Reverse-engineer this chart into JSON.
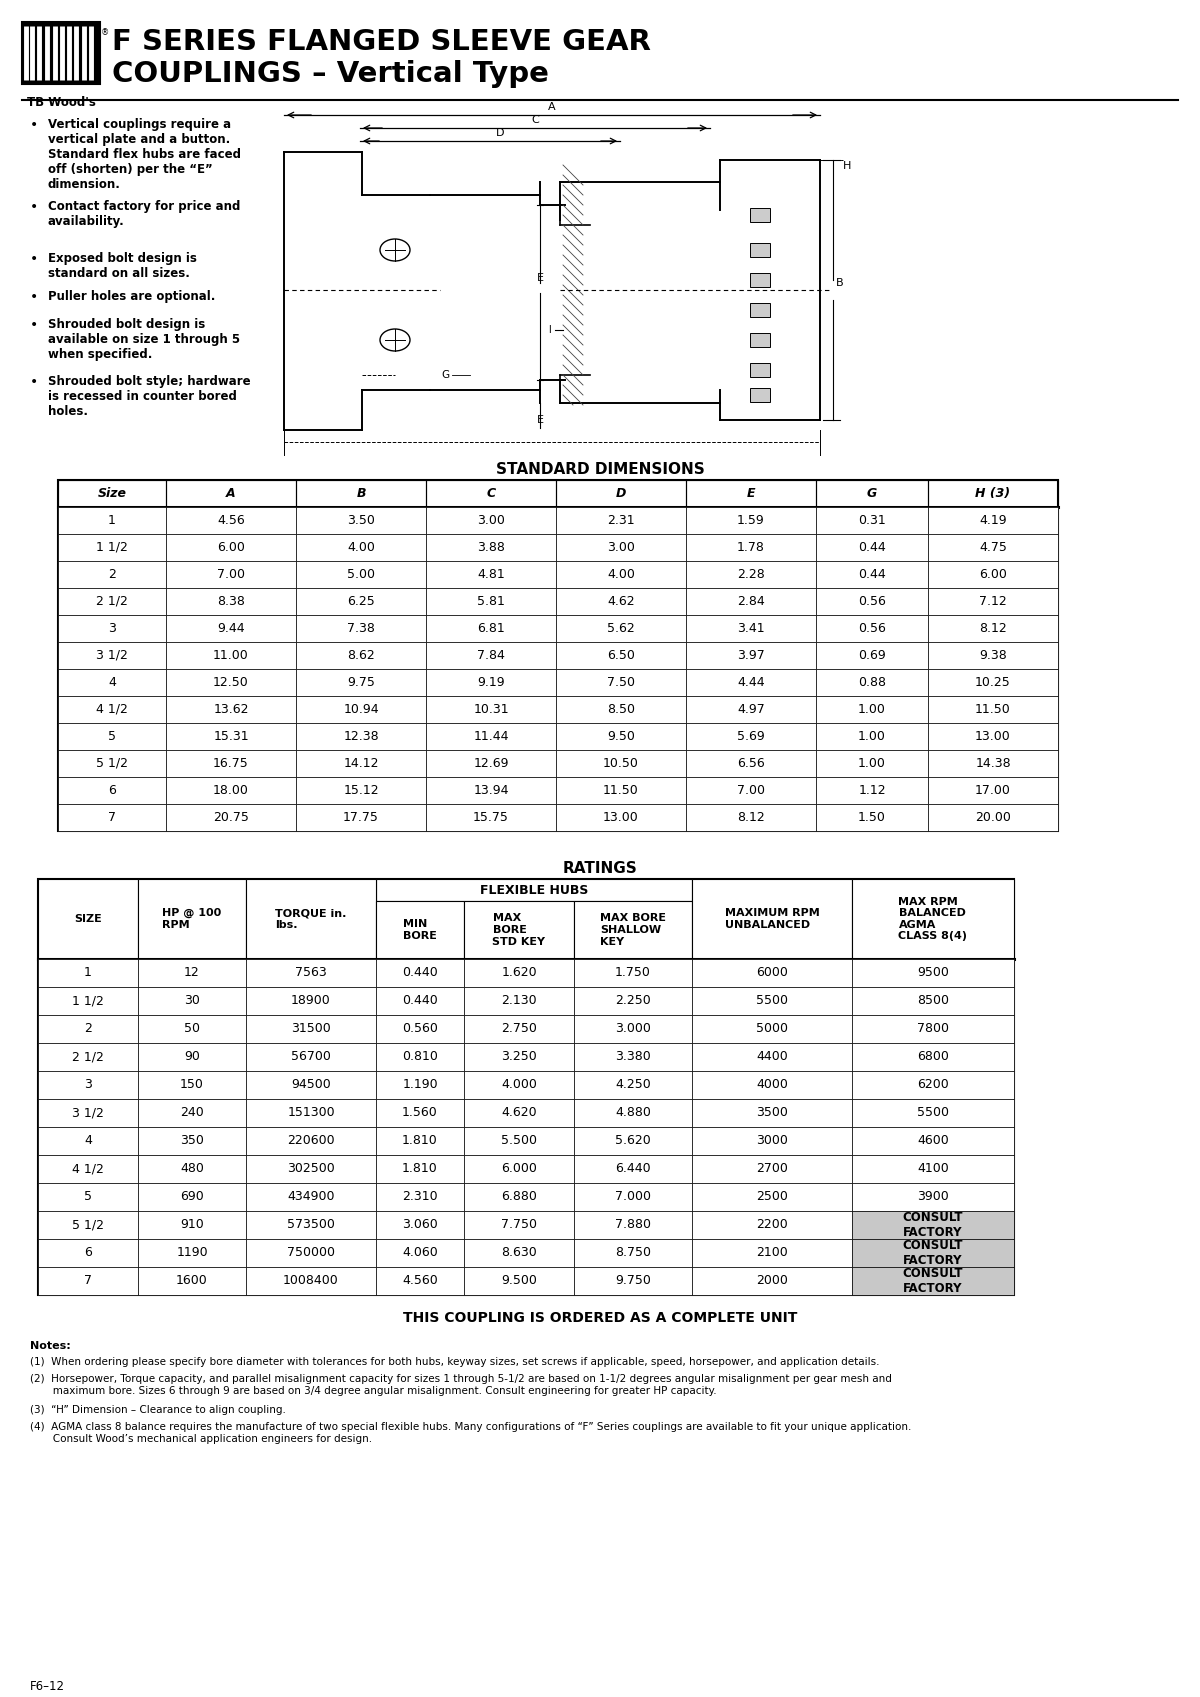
{
  "title_line1": "F SERIES FLANGED SLEEVE GEAR",
  "title_line2": "COUPLINGS – Vertical Type",
  "bullet_points": [
    "Vertical couplings require a\nvertical plate and a button.\nStandard flex hubs are faced\noff (shorten) per the “E”\ndimension.",
    "Contact factory for price and\navailability.",
    "Exposed bolt design is\nstandard on all sizes.",
    "Puller holes are optional.",
    "Shrouded bolt design is\navailable on size 1 through 5\nwhen specified.",
    "Shrouded bolt style; hardware\nis recessed in counter bored\nholes."
  ],
  "std_dim_title": "STANDARD DIMENSIONS",
  "std_dim_headers": [
    "Size",
    "A",
    "B",
    "C",
    "D",
    "E",
    "G",
    "H (3)"
  ],
  "std_dim_rows": [
    [
      "1",
      "4.56",
      "3.50",
      "3.00",
      "2.31",
      "1.59",
      "0.31",
      "4.19"
    ],
    [
      "1 1/2",
      "6.00",
      "4.00",
      "3.88",
      "3.00",
      "1.78",
      "0.44",
      "4.75"
    ],
    [
      "2",
      "7.00",
      "5.00",
      "4.81",
      "4.00",
      "2.28",
      "0.44",
      "6.00"
    ],
    [
      "2 1/2",
      "8.38",
      "6.25",
      "5.81",
      "4.62",
      "2.84",
      "0.56",
      "7.12"
    ],
    [
      "3",
      "9.44",
      "7.38",
      "6.81",
      "5.62",
      "3.41",
      "0.56",
      "8.12"
    ],
    [
      "3 1/2",
      "11.00",
      "8.62",
      "7.84",
      "6.50",
      "3.97",
      "0.69",
      "9.38"
    ],
    [
      "4",
      "12.50",
      "9.75",
      "9.19",
      "7.50",
      "4.44",
      "0.88",
      "10.25"
    ],
    [
      "4 1/2",
      "13.62",
      "10.94",
      "10.31",
      "8.50",
      "4.97",
      "1.00",
      "11.50"
    ],
    [
      "5",
      "15.31",
      "12.38",
      "11.44",
      "9.50",
      "5.69",
      "1.00",
      "13.00"
    ],
    [
      "5 1/2",
      "16.75",
      "14.12",
      "12.69",
      "10.50",
      "6.56",
      "1.00",
      "14.38"
    ],
    [
      "6",
      "18.00",
      "15.12",
      "13.94",
      "11.50",
      "7.00",
      "1.12",
      "17.00"
    ],
    [
      "7",
      "20.75",
      "17.75",
      "15.75",
      "13.00",
      "8.12",
      "1.50",
      "20.00"
    ]
  ],
  "ratings_title": "RATINGS",
  "ratings_headers": [
    "SIZE",
    "HP @ 100\nRPM",
    "TORQUE in.\nlbs.",
    "MIN\nBORE",
    "MAX\nBORE\nSTD KEY",
    "MAX BORE\nSHALLOW\nKEY",
    "MAXIMUM RPM\nUNBALANCED",
    "MAX RPM\nBALANCED\nAGMA\nCLASS 8(4)"
  ],
  "ratings_rows": [
    [
      "1",
      "12",
      "7563",
      "0.440",
      "1.620",
      "1.750",
      "6000",
      "9500"
    ],
    [
      "1 1/2",
      "30",
      "18900",
      "0.440",
      "2.130",
      "2.250",
      "5500",
      "8500"
    ],
    [
      "2",
      "50",
      "31500",
      "0.560",
      "2.750",
      "3.000",
      "5000",
      "7800"
    ],
    [
      "2 1/2",
      "90",
      "56700",
      "0.810",
      "3.250",
      "3.380",
      "4400",
      "6800"
    ],
    [
      "3",
      "150",
      "94500",
      "1.190",
      "4.000",
      "4.250",
      "4000",
      "6200"
    ],
    [
      "3 1/2",
      "240",
      "151300",
      "1.560",
      "4.620",
      "4.880",
      "3500",
      "5500"
    ],
    [
      "4",
      "350",
      "220600",
      "1.810",
      "5.500",
      "5.620",
      "3000",
      "4600"
    ],
    [
      "4 1/2",
      "480",
      "302500",
      "1.810",
      "6.000",
      "6.440",
      "2700",
      "4100"
    ],
    [
      "5",
      "690",
      "434900",
      "2.310",
      "6.880",
      "7.000",
      "2500",
      "3900"
    ],
    [
      "5 1/2",
      "910",
      "573500",
      "3.060",
      "7.750",
      "7.880",
      "2200",
      "CONSULT\nFACTORY"
    ],
    [
      "6",
      "1190",
      "750000",
      "4.060",
      "8.630",
      "8.750",
      "2100",
      "CONSULT\nFACTORY"
    ],
    [
      "7",
      "1600",
      "1008400",
      "4.560",
      "9.500",
      "9.750",
      "2000",
      "CONSULT\nFACTORY"
    ]
  ],
  "consult_rows": [
    9,
    10,
    11
  ],
  "order_note": "THIS COUPLING IS ORDERED AS A COMPLETE UNIT",
  "notes_title": "Notes:",
  "notes": [
    "(1)  When ordering please specify bore diameter with tolerances for both hubs, keyway sizes, set screws if applicable, speed, horsepower, and application details.",
    "(2)  Horsepower, Torque capacity, and parallel misalignment capacity for sizes 1 through 5-1/2 are based on 1-1/2 degrees angular misalignment per gear mesh and\n       maximum bore. Sizes 6 through 9 are based on 3/4 degree angular misalignment. Consult engineering for greater HP capacity.",
    "(3)  “H” Dimension – Clearance to align coupling.",
    "(4)  AGMA class 8 balance requires the manufacture of two special flexible hubs. Many configurations of “F” Series couplings are available to fit your unique application.\n       Consult Wood’s mechanical application engineers for design."
  ],
  "footer": "F6–12",
  "bg_color": "#ffffff"
}
